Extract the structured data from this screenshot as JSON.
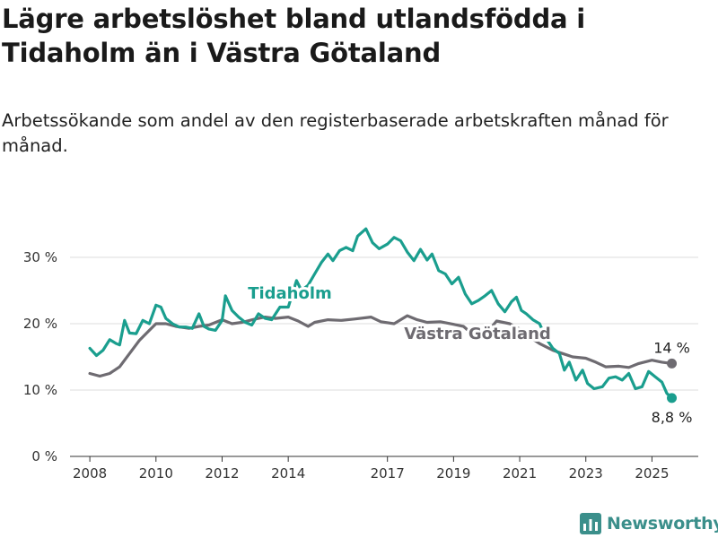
{
  "title": "Lägre arbetslöshet bland utlandsfödda i Tidaholm än i Västra Götaland",
  "subtitle": "Arbetssökande som andel av den registerbaserade arbetskraften månad för månad.",
  "brand": {
    "name": "Newsworthy",
    "icon": "bar-chart-logo-icon",
    "color": "#3b8f8b"
  },
  "chart_data": {
    "type": "line",
    "x_range": [
      2007.4,
      2026.4
    ],
    "ylim": [
      0,
      35
    ],
    "y_ticks": [
      0,
      10,
      20,
      30
    ],
    "y_tick_labels": [
      "0 %",
      "10 %",
      "20 %",
      "30 %"
    ],
    "x_ticks": [
      2008,
      2010,
      2012,
      2014,
      2017,
      2019,
      2021,
      2023,
      2025
    ],
    "x_tick_labels": [
      "2008",
      "2010",
      "2012",
      "2014",
      "2017",
      "2019",
      "2021",
      "2023",
      "2025"
    ],
    "grid": true,
    "legend": "direct labels",
    "series": [
      {
        "name": "Västra Götaland",
        "color": "#6e6b71",
        "end_label": "14 %",
        "points": [
          [
            2008.0,
            12.5
          ],
          [
            2008.3,
            12.1
          ],
          [
            2008.6,
            12.5
          ],
          [
            2008.9,
            13.5
          ],
          [
            2009.2,
            15.5
          ],
          [
            2009.5,
            17.5
          ],
          [
            2009.8,
            19.0
          ],
          [
            2010.0,
            20.0
          ],
          [
            2010.3,
            20.0
          ],
          [
            2010.6,
            19.6
          ],
          [
            2011.0,
            19.3
          ],
          [
            2011.3,
            19.6
          ],
          [
            2011.6,
            19.8
          ],
          [
            2012.0,
            20.6
          ],
          [
            2012.3,
            20.0
          ],
          [
            2012.6,
            20.2
          ],
          [
            2013.0,
            20.7
          ],
          [
            2013.3,
            21.0
          ],
          [
            2013.6,
            20.8
          ],
          [
            2014.0,
            21.0
          ],
          [
            2014.3,
            20.4
          ],
          [
            2014.6,
            19.6
          ],
          [
            2014.8,
            20.2
          ],
          [
            2015.2,
            20.6
          ],
          [
            2015.6,
            20.5
          ],
          [
            2016.0,
            20.7
          ],
          [
            2016.5,
            21.0
          ],
          [
            2016.8,
            20.3
          ],
          [
            2017.2,
            20.0
          ],
          [
            2017.6,
            21.2
          ],
          [
            2017.9,
            20.6
          ],
          [
            2018.2,
            20.2
          ],
          [
            2018.6,
            20.3
          ],
          [
            2019.0,
            19.9
          ],
          [
            2019.3,
            19.6
          ],
          [
            2019.6,
            18.3
          ],
          [
            2020.0,
            18.6
          ],
          [
            2020.3,
            20.4
          ],
          [
            2020.7,
            20.0
          ],
          [
            2021.0,
            19.2
          ],
          [
            2021.3,
            18.0
          ],
          [
            2021.6,
            17.0
          ],
          [
            2022.0,
            16.0
          ],
          [
            2022.3,
            15.5
          ],
          [
            2022.6,
            15.0
          ],
          [
            2023.0,
            14.8
          ],
          [
            2023.3,
            14.2
          ],
          [
            2023.6,
            13.5
          ],
          [
            2024.0,
            13.6
          ],
          [
            2024.3,
            13.4
          ],
          [
            2024.6,
            14.0
          ],
          [
            2025.0,
            14.5
          ],
          [
            2025.3,
            14.2
          ],
          [
            2025.6,
            14.0
          ]
        ]
      },
      {
        "name": "Tidaholm",
        "color": "#1a9e8e",
        "end_label": "8,8 %",
        "points": [
          [
            2008.0,
            16.3
          ],
          [
            2008.2,
            15.2
          ],
          [
            2008.4,
            16.0
          ],
          [
            2008.6,
            17.6
          ],
          [
            2008.8,
            17.0
          ],
          [
            2008.9,
            16.8
          ],
          [
            2009.05,
            20.5
          ],
          [
            2009.2,
            18.6
          ],
          [
            2009.4,
            18.5
          ],
          [
            2009.6,
            20.5
          ],
          [
            2009.8,
            20.0
          ],
          [
            2010.0,
            22.8
          ],
          [
            2010.15,
            22.5
          ],
          [
            2010.3,
            20.8
          ],
          [
            2010.5,
            20.0
          ],
          [
            2010.7,
            19.5
          ],
          [
            2010.9,
            19.5
          ],
          [
            2011.1,
            19.3
          ],
          [
            2011.3,
            21.5
          ],
          [
            2011.45,
            19.6
          ],
          [
            2011.6,
            19.2
          ],
          [
            2011.8,
            19.0
          ],
          [
            2012.0,
            20.5
          ],
          [
            2012.1,
            24.2
          ],
          [
            2012.3,
            22.0
          ],
          [
            2012.5,
            21.0
          ],
          [
            2012.7,
            20.2
          ],
          [
            2012.9,
            19.8
          ],
          [
            2013.1,
            21.5
          ],
          [
            2013.3,
            20.8
          ],
          [
            2013.5,
            20.6
          ],
          [
            2013.75,
            22.5
          ],
          [
            2014.0,
            22.5
          ],
          [
            2014.25,
            26.5
          ],
          [
            2014.4,
            25.0
          ],
          [
            2014.6,
            25.8
          ],
          [
            2014.8,
            27.5
          ],
          [
            2015.0,
            29.2
          ],
          [
            2015.2,
            30.5
          ],
          [
            2015.35,
            29.5
          ],
          [
            2015.55,
            31.0
          ],
          [
            2015.75,
            31.5
          ],
          [
            2015.95,
            31.0
          ],
          [
            2016.1,
            33.2
          ],
          [
            2016.35,
            34.3
          ],
          [
            2016.55,
            32.2
          ],
          [
            2016.75,
            31.3
          ],
          [
            2017.0,
            32.0
          ],
          [
            2017.2,
            33.0
          ],
          [
            2017.4,
            32.5
          ],
          [
            2017.6,
            30.8
          ],
          [
            2017.8,
            29.5
          ],
          [
            2018.0,
            31.2
          ],
          [
            2018.2,
            29.6
          ],
          [
            2018.35,
            30.5
          ],
          [
            2018.55,
            28.0
          ],
          [
            2018.75,
            27.5
          ],
          [
            2018.95,
            26.0
          ],
          [
            2019.15,
            27.0
          ],
          [
            2019.35,
            24.5
          ],
          [
            2019.55,
            23.0
          ],
          [
            2019.75,
            23.5
          ],
          [
            2019.95,
            24.2
          ],
          [
            2020.15,
            25.0
          ],
          [
            2020.35,
            23.0
          ],
          [
            2020.55,
            21.8
          ],
          [
            2020.75,
            23.3
          ],
          [
            2020.9,
            24.0
          ],
          [
            2021.05,
            22.0
          ],
          [
            2021.2,
            21.5
          ],
          [
            2021.4,
            20.6
          ],
          [
            2021.6,
            20.0
          ],
          [
            2021.8,
            17.8
          ],
          [
            2022.0,
            16.3
          ],
          [
            2022.2,
            15.5
          ],
          [
            2022.35,
            13.0
          ],
          [
            2022.5,
            14.2
          ],
          [
            2022.7,
            11.5
          ],
          [
            2022.9,
            13.0
          ],
          [
            2023.05,
            11.0
          ],
          [
            2023.25,
            10.2
          ],
          [
            2023.5,
            10.5
          ],
          [
            2023.7,
            11.8
          ],
          [
            2023.9,
            12.0
          ],
          [
            2024.1,
            11.5
          ],
          [
            2024.3,
            12.5
          ],
          [
            2024.5,
            10.2
          ],
          [
            2024.7,
            10.5
          ],
          [
            2024.9,
            12.8
          ],
          [
            2025.1,
            12.0
          ],
          [
            2025.3,
            11.2
          ],
          [
            2025.45,
            9.5
          ],
          [
            2025.6,
            8.8
          ]
        ]
      }
    ]
  }
}
